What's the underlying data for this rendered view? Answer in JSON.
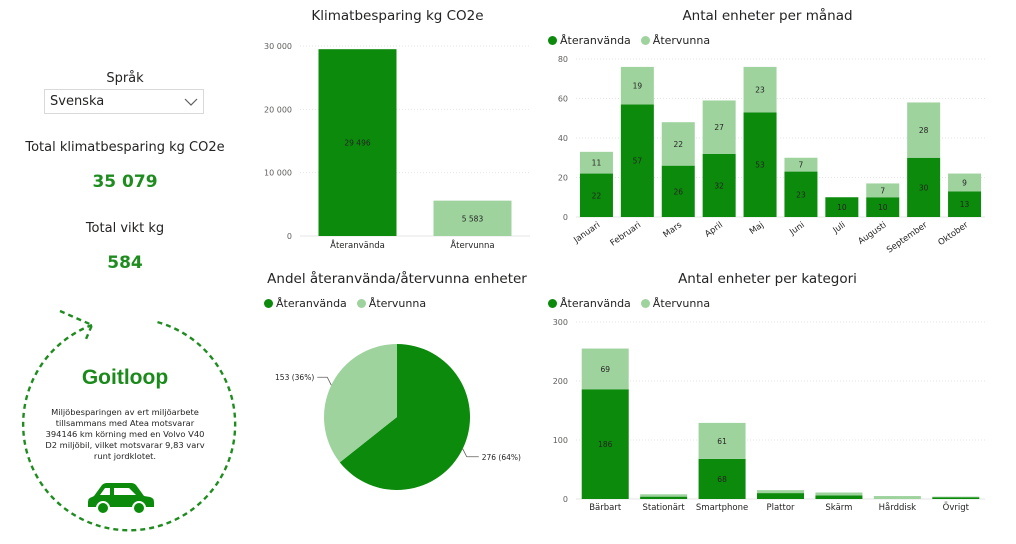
{
  "sidebar": {
    "language_label": "Språk",
    "language_value": "Svenska",
    "kpi1_label": "Total klimatbesparing kg CO2e",
    "kpi1_value": "35 079",
    "kpi2_label": "Total vikt kg",
    "kpi2_value": "584",
    "loop_title": "Goitloop",
    "loop_text": "Miljöbesparingen av ert miljöarbete tillsammans med Atea motsvarar 394146 km körning med en Volvo V40 D2 miljöbil, vilket motsvarar 9,83 varv runt jordklotet."
  },
  "colors": {
    "reused": "#0b8a0b",
    "recycled": "#9ed39e",
    "accent": "#1e8c1e"
  },
  "legend": {
    "reused": "Återanvända",
    "recycled": "Återvunna"
  },
  "chart_data": [
    {
      "id": "klimat",
      "type": "bar",
      "title": "Klimatbesparing kg CO2e",
      "categories": [
        "Återanvända",
        "Återvunna"
      ],
      "values": [
        29496,
        5583
      ],
      "labels": [
        "29 496",
        "5 583"
      ],
      "yticks": [
        "0",
        "10 000",
        "20 000",
        "30 000"
      ],
      "ylim": [
        0,
        30000
      ]
    },
    {
      "id": "manad",
      "type": "bar",
      "stacked": true,
      "title": "Antal enheter per månad",
      "categories": [
        "Januari",
        "Februari",
        "Mars",
        "April",
        "Maj",
        "Juni",
        "Juli",
        "Augusti",
        "September",
        "Oktober"
      ],
      "series": [
        {
          "name": "Återanvända",
          "values": [
            22,
            57,
            26,
            32,
            53,
            23,
            10,
            10,
            30,
            13
          ]
        },
        {
          "name": "Återvunna",
          "values": [
            11,
            19,
            22,
            27,
            23,
            7,
            0,
            7,
            28,
            9
          ]
        }
      ],
      "yticks": [
        "0",
        "20",
        "40",
        "60",
        "80"
      ],
      "ylim": [
        0,
        80
      ]
    },
    {
      "id": "andel",
      "type": "pie",
      "title": "Andel återanvända/återvunna enheter",
      "categories": [
        "Återanvända",
        "Återvunna"
      ],
      "values": [
        276,
        153
      ],
      "labels": [
        "276 (64%)",
        "153 (36%)"
      ]
    },
    {
      "id": "kategori",
      "type": "bar",
      "stacked": true,
      "title": "Antal enheter per kategori",
      "categories": [
        "Bärbart",
        "Stationärt",
        "Smartphone",
        "Plattor",
        "Skärm",
        "Hårddisk",
        "Övrigt"
      ],
      "series": [
        {
          "name": "Återanvända",
          "values": [
            186,
            4,
            68,
            10,
            6,
            0,
            3
          ]
        },
        {
          "name": "Återvunna",
          "values": [
            69,
            4,
            61,
            5,
            5,
            5,
            1
          ]
        }
      ],
      "yticks": [
        "0",
        "100",
        "200",
        "300"
      ],
      "ylim": [
        0,
        300
      ]
    }
  ]
}
